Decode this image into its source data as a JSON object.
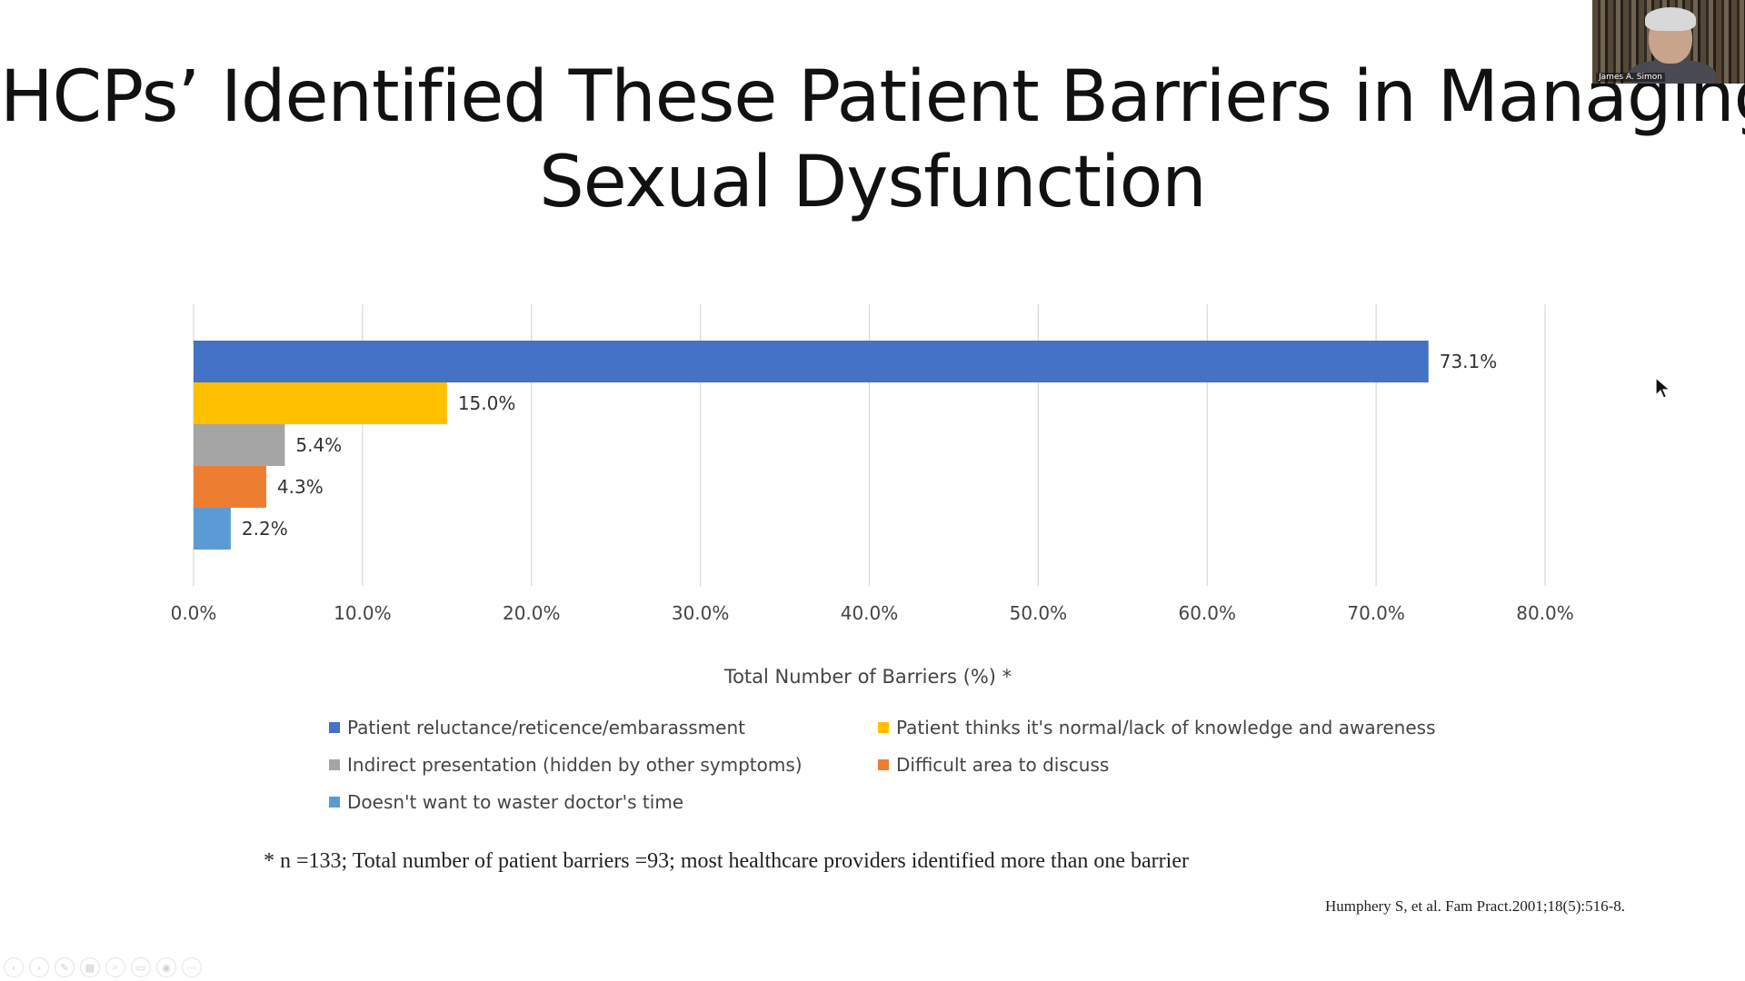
{
  "slide": {
    "title_line1": "HCPs’ Identified These Patient Barriers in Managing",
    "title_line2": "Sexual Dysfunction",
    "footnote": "* n =133; Total number of patient barriers =93; most healthcare providers identified more than one barrier",
    "citation": "Humphery S, et al. Fam Pract.2001;18(5):516-8."
  },
  "webcam": {
    "name": "James A. Simon"
  },
  "chart_data": {
    "type": "bar",
    "orientation": "horizontal",
    "xlabel": "Total Number of Barriers (%) *",
    "ylabel": "",
    "xlim": [
      0,
      80
    ],
    "x_ticks": [
      "0.0%",
      "10.0%",
      "20.0%",
      "30.0%",
      "40.0%",
      "50.0%",
      "60.0%",
      "70.0%",
      "80.0%"
    ],
    "grid": "vertical gridlines",
    "legend_position": "bottom",
    "series": [
      {
        "name": "Patient reluctance/reticence/embarassment",
        "value": 73.1,
        "label": "73.1%",
        "color": "#4472C4"
      },
      {
        "name": "Patient thinks it's normal/lack of knowledge and awareness",
        "value": 15.0,
        "label": "15.0%",
        "color": "#FFC000"
      },
      {
        "name": "Indirect presentation (hidden by other symptoms)",
        "value": 5.4,
        "label": "5.4%",
        "color": "#A5A5A5"
      },
      {
        "name": "Difficult area to discuss",
        "value": 4.3,
        "label": "4.3%",
        "color": "#ED7D31"
      },
      {
        "name": "Doesn't want to waster doctor's time",
        "value": 2.2,
        "label": "2.2%",
        "color": "#5B9BD5"
      }
    ]
  },
  "toolbar": {
    "icons": [
      "previous-icon",
      "next-icon",
      "pen-icon",
      "slides-icon",
      "zoom-icon",
      "subtitles-icon",
      "camera-icon",
      "more-icon"
    ]
  }
}
